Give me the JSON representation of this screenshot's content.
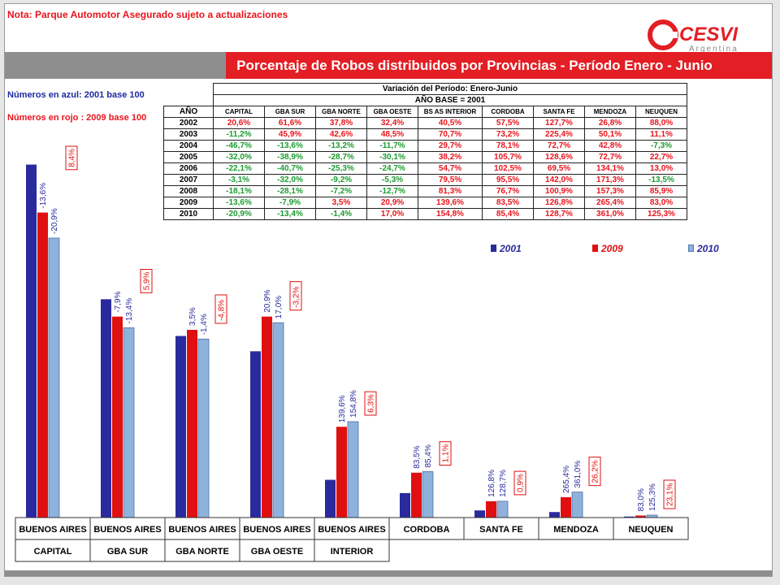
{
  "note": "Nota: Parque Automotor Asegurado sujeto a actualizaciones",
  "logo": {
    "brand": "CESVI",
    "sub": "Argentina"
  },
  "header_title": "Porcentaje de Robos distribuidos por Provincias - Período Enero - Junio",
  "legend_texts": {
    "blue": "Números en azul: 2001 base 100",
    "red": "Números en rojo : 2009 base 100"
  },
  "colors": {
    "accent_red": "#e31e24",
    "blue": "#2a2a9e",
    "red": "#e01010",
    "lightblue": "#8fb2dc",
    "green": "#1a9c2e"
  },
  "table": {
    "title1": "Variación del Período: Enero-Junio",
    "title2": "AÑO BASE = 2001",
    "year_header": "AÑO",
    "columns": [
      "CAPITAL",
      "GBA SUR",
      "GBA NORTE",
      "GBA OESTE",
      "BS AS INTERIOR",
      "CORDOBA",
      "SANTA FE",
      "MENDOZA",
      "NEUQUEN"
    ],
    "rows": [
      {
        "year": "2002",
        "values": [
          "20,6%",
          "61,6%",
          "37,8%",
          "32,4%",
          "40,5%",
          "57,5%",
          "127,7%",
          "26,8%",
          "88,0%"
        ],
        "colors": [
          "red",
          "red",
          "red",
          "red",
          "red",
          "red",
          "red",
          "red",
          "red"
        ]
      },
      {
        "year": "2003",
        "values": [
          "-11,2%",
          "45,9%",
          "42,6%",
          "48,5%",
          "70,7%",
          "73,2%",
          "225,4%",
          "50,1%",
          "11,1%"
        ],
        "colors": [
          "green",
          "red",
          "red",
          "red",
          "red",
          "red",
          "red",
          "red",
          "red"
        ]
      },
      {
        "year": "2004",
        "values": [
          "-46,7%",
          "-13,6%",
          "-13,2%",
          "-11,7%",
          "29,7%",
          "78,1%",
          "72,7%",
          "42,8%",
          "-7,3%"
        ],
        "colors": [
          "green",
          "green",
          "green",
          "green",
          "red",
          "red",
          "red",
          "red",
          "green"
        ]
      },
      {
        "year": "2005",
        "values": [
          "-32,0%",
          "-38,9%",
          "-28,7%",
          "-30,1%",
          "38,2%",
          "105,7%",
          "128,6%",
          "72,7%",
          "22,7%"
        ],
        "colors": [
          "green",
          "green",
          "green",
          "green",
          "red",
          "red",
          "red",
          "red",
          "red"
        ]
      },
      {
        "year": "2006",
        "values": [
          "-22,1%",
          "-40,7%",
          "-25,3%",
          "-24,7%",
          "54,7%",
          "102,5%",
          "69,5%",
          "134,1%",
          "13,0%"
        ],
        "colors": [
          "green",
          "green",
          "green",
          "green",
          "red",
          "red",
          "red",
          "red",
          "red"
        ]
      },
      {
        "year": "2007",
        "values": [
          "-3,1%",
          "-32,0%",
          "-9,2%",
          "-5,3%",
          "79,5%",
          "95,5%",
          "142,0%",
          "171,3%",
          "-13,5%"
        ],
        "colors": [
          "green",
          "green",
          "green",
          "green",
          "red",
          "red",
          "red",
          "red",
          "green"
        ]
      },
      {
        "year": "2008",
        "values": [
          "-18,1%",
          "-28,1%",
          "-7,2%",
          "-12,7%",
          "81,3%",
          "76,7%",
          "100,9%",
          "157,3%",
          "85,9%"
        ],
        "colors": [
          "green",
          "green",
          "green",
          "green",
          "red",
          "red",
          "red",
          "red",
          "red"
        ]
      },
      {
        "year": "2009",
        "values": [
          "-13,6%",
          "-7,9%",
          "3,5%",
          "20,9%",
          "139,6%",
          "83,5%",
          "126,8%",
          "265,4%",
          "83,0%"
        ],
        "colors": [
          "green",
          "green",
          "red",
          "red",
          "red",
          "red",
          "red",
          "red",
          "red"
        ]
      },
      {
        "year": "2010",
        "values": [
          "-20,9%",
          "-13,4%",
          "-1,4%",
          "17,0%",
          "154,8%",
          "85,4%",
          "128,7%",
          "361,0%",
          "125,3%"
        ],
        "colors": [
          "green",
          "green",
          "green",
          "red",
          "red",
          "red",
          "red",
          "red",
          "red"
        ]
      }
    ]
  },
  "chart_legend": [
    "2001",
    "2009",
    "2010"
  ],
  "chart_data": {
    "type": "bar",
    "categories": [
      [
        "BUENOS AIRES",
        "CAPITAL"
      ],
      [
        "BUENOS AIRES",
        "GBA SUR"
      ],
      [
        "BUENOS AIRES",
        "GBA NORTE"
      ],
      [
        "BUENOS AIRES",
        "GBA OESTE"
      ],
      [
        "BUENOS AIRES",
        "INTERIOR"
      ],
      [
        "CORDOBA",
        ""
      ],
      [
        "SANTA FE",
        ""
      ],
      [
        "MENDOZA",
        ""
      ],
      [
        "NEUQUEN",
        ""
      ]
    ],
    "series": [
      {
        "name": "2001",
        "values": [
          34.6,
          21.4,
          17.8,
          16.3,
          3.7,
          2.4,
          0.7,
          0.54,
          0.1
        ]
      },
      {
        "name": "2009",
        "values": [
          29.9,
          19.7,
          18.4,
          19.7,
          8.9,
          4.4,
          1.6,
          2.0,
          0.2
        ]
      },
      {
        "name": "2010",
        "values": [
          27.4,
          18.6,
          17.5,
          19.1,
          9.4,
          4.5,
          1.6,
          2.5,
          0.24
        ]
      }
    ],
    "bar_labels": [
      [
        "-13,6%",
        "-20,9%"
      ],
      [
        "-7,9%",
        "-13,4%"
      ],
      [
        "3,5%",
        "-1,4%"
      ],
      [
        "20,9%",
        "17,0%"
      ],
      [
        "139,6%",
        "154,8%"
      ],
      [
        "83,5%",
        "85,4%"
      ],
      [
        "126,8%",
        "128,7%"
      ],
      [
        "265,4%",
        "361,0%"
      ],
      [
        "83,0%",
        "125,3%"
      ]
    ],
    "boxed_labels": [
      "8,4%",
      "5,9%",
      "-4,8%",
      "-3,2%",
      "6,3%",
      "1,1%",
      "0,9%",
      "26,2%",
      "23,1%"
    ],
    "ylim": [
      0,
      36
    ]
  }
}
